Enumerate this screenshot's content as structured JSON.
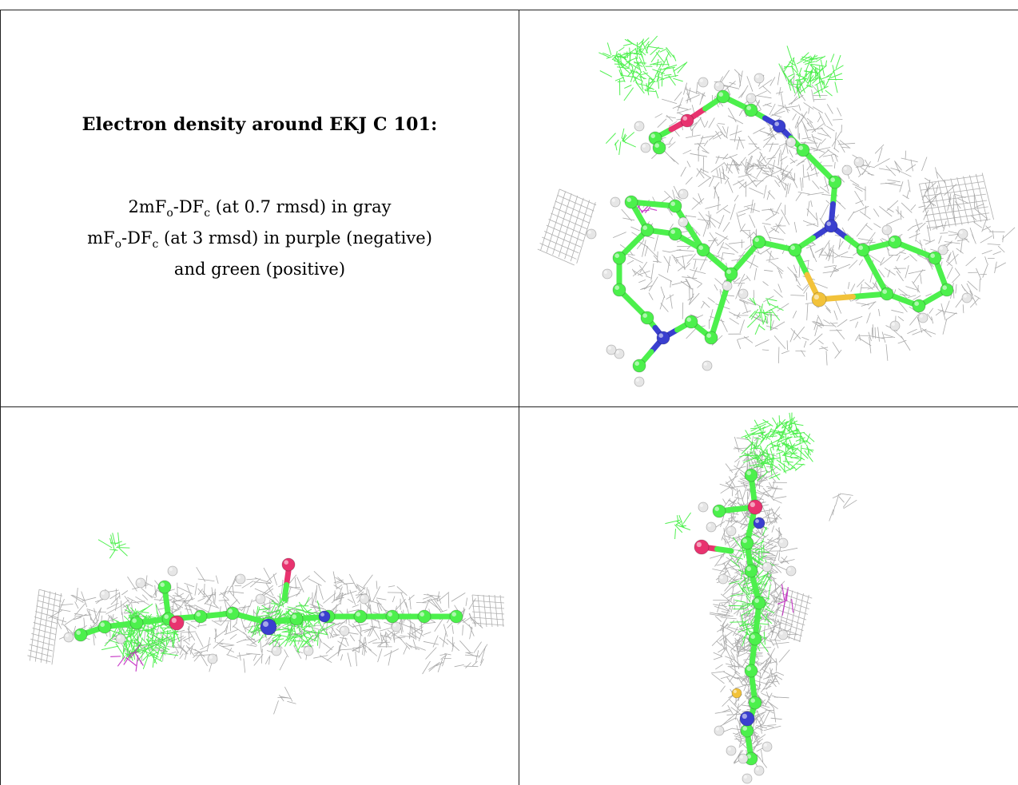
{
  "title": "Electron density around EKJ C 101:",
  "legend": {
    "line1_prefix": "2mF",
    "line1_sub1": "o",
    "line1_mid": "-DF",
    "line1_sub2": "c",
    "line1_suffix": " (at 0.7 rmsd) in gray",
    "line2_prefix": "mF",
    "line2_sub1": "o",
    "line2_mid": "-DF",
    "line2_sub2": "c",
    "line2_suffix": " (at 3 rmsd) in purple (negative)",
    "line3": "and green (positive)"
  },
  "colors": {
    "carbon": "#4cf04c",
    "nitrogen": "#3a3fcf",
    "oxygen": "#e8336f",
    "sulfur": "#f2c23a",
    "hydrogen": "#e6e6e6",
    "mesh_gray": "#9a9a9a",
    "mesh_green": "#33ee33",
    "mesh_purple": "#c020c0"
  }
}
